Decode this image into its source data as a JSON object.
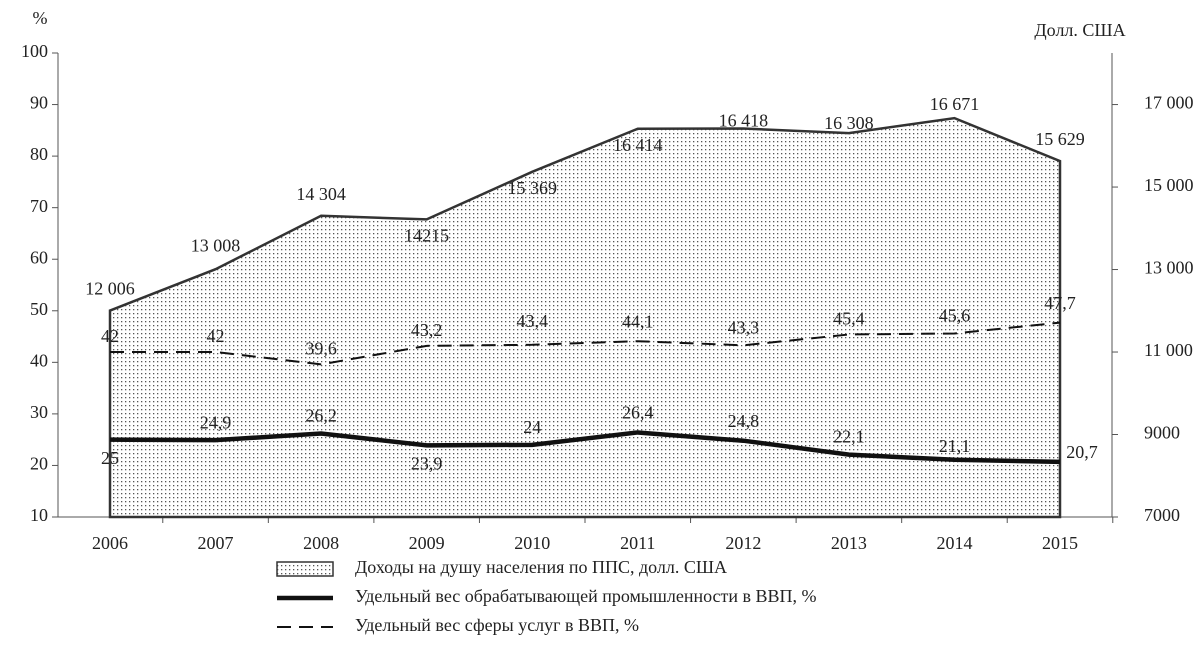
{
  "chart_data": {
    "type": "line",
    "ylabel": "%",
    "y2label": "Долл. США",
    "categories": [
      "2006",
      "2007",
      "2008",
      "2009",
      "2010",
      "2011",
      "2012",
      "2013",
      "2014",
      "2015"
    ],
    "ylim": [
      10,
      100
    ],
    "yticks": [
      10,
      20,
      30,
      40,
      50,
      60,
      70,
      80,
      90,
      100
    ],
    "y2lim": [
      7000,
      18250
    ],
    "y2ticks": [
      {
        "value": 7000,
        "label": "7000"
      },
      {
        "value": 9000,
        "label": "9000"
      },
      {
        "value": 11000,
        "label": "11 000"
      },
      {
        "value": 13000,
        "label": "13 000"
      },
      {
        "value": 15000,
        "label": "15 000"
      },
      {
        "value": 17000,
        "label": "17 000"
      }
    ],
    "series": [
      {
        "name": "Доходы на душу населения по ППС, долл. США",
        "kind": "area",
        "axis": "y2",
        "color": "#333333",
        "values": [
          12006,
          13008,
          14304,
          14215,
          15369,
          16414,
          16418,
          16308,
          16671,
          15629
        ],
        "value_labels": [
          "12 006",
          "13 008",
          "14 304",
          "14215",
          "15 369",
          "16 414",
          "16 418",
          "16 308",
          "16 671",
          "15 629"
        ]
      },
      {
        "name": "Удельный вес обрабатывающей промышленности в ВВП, %",
        "kind": "solid",
        "color": "#111111",
        "values": [
          25,
          24.9,
          26.2,
          23.9,
          24,
          26.4,
          24.8,
          22.1,
          21.1,
          20.7
        ],
        "value_labels": [
          "25",
          "24,9",
          "26,2",
          "23,9",
          "24",
          "26,4",
          "24,8",
          "22,1",
          "21,1",
          "20,7"
        ]
      },
      {
        "name": "Удельный вес сферы услуг в ВВП, %",
        "kind": "dashed",
        "color": "#111111",
        "values": [
          42,
          42,
          39.6,
          43.2,
          43.4,
          44.1,
          43.3,
          45.4,
          45.6,
          47.7
        ],
        "value_labels": [
          "42",
          "42",
          "39,6",
          "43,2",
          "43,4",
          "44,1",
          "43,3",
          "45,4",
          "45,6",
          "47,7"
        ]
      }
    ]
  }
}
